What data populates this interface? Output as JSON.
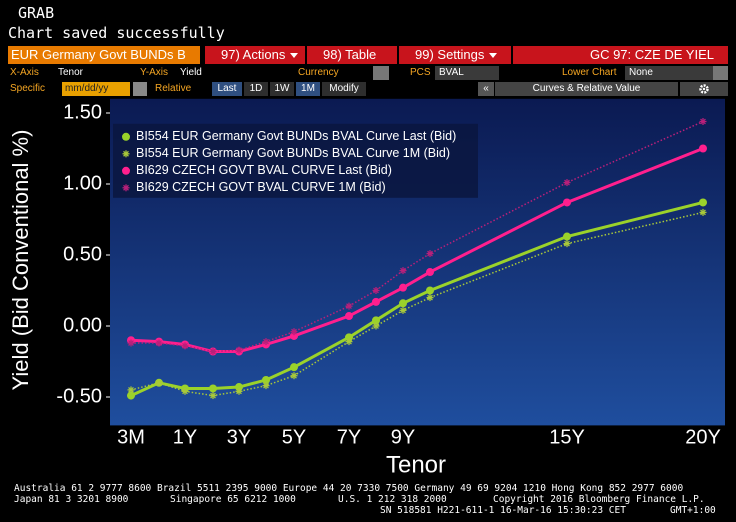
{
  "header": {
    "title": "GRAB",
    "message": "Chart saved successfully"
  },
  "toolbar": {
    "security": "EUR Germany Govt BUNDs B",
    "actions": "97) Actions",
    "table": "98) Table",
    "settings": "99) Settings",
    "function": "GC 97: CZE DE YIEL",
    "x_axis_label": "X-Axis",
    "x_axis_value": "Tenor",
    "y_axis_label": "Y-Axis",
    "y_axis_value": "Yield",
    "currency_label": "Currency",
    "pcs_label": "PCS",
    "pcs_value": "BVAL",
    "lower_chart_label": "Lower Chart",
    "lower_chart_value": "None",
    "specific_label": "Specific",
    "date_placeholder": "mm/dd/yy",
    "relative_label": "Relative",
    "relative_buttons": [
      "Last",
      "1D",
      "1W",
      "1M"
    ],
    "modify": "Modify",
    "collapse": "«",
    "panel": "Curves & Relative Value"
  },
  "chart_data": {
    "type": "line",
    "x_label": "Tenor",
    "y_label": "Yield (Bid Conventional %)",
    "categories": [
      "3M",
      null,
      "1Y",
      null,
      "3Y",
      null,
      "5Y",
      "7Y",
      null,
      "9Y",
      null,
      "15Y",
      "20Y"
    ],
    "ylim": [
      -0.7,
      1.6
    ],
    "yticks": [
      {
        "value": -0.5,
        "label": "-0.50"
      },
      {
        "value": 0,
        "label": "0.00"
      },
      {
        "value": 0.5,
        "label": "0.50"
      },
      {
        "value": 1,
        "label": "1.00"
      },
      {
        "value": 1.5,
        "label": "1.50"
      }
    ],
    "legend": "upper left",
    "series": [
      {
        "name": "BI554 EUR Germany Govt BUNDs BVAL Curve Last (Bid)",
        "color": "#9bd22a",
        "marker": "circle",
        "linestyle": "solid",
        "values": [
          -0.49,
          -0.4,
          -0.44,
          -0.44,
          -0.43,
          -0.38,
          -0.29,
          -0.08,
          0.04,
          0.16,
          0.25,
          0.63,
          0.87
        ]
      },
      {
        "name": "BI554 EUR Germany Govt BUNDs BVAL Curve 1M (Bid)",
        "color": "#a8c83a",
        "marker": "asterisk",
        "linestyle": "dotted",
        "values": [
          -0.45,
          -0.4,
          -0.46,
          -0.49,
          -0.46,
          -0.42,
          -0.35,
          -0.11,
          0.0,
          0.11,
          0.2,
          0.58,
          0.8
        ]
      },
      {
        "name": "BI629 CZECH GOVT BVAL CURVE Last (Bid)",
        "color": "#ff1f8e",
        "marker": "circle",
        "linestyle": "solid",
        "values": [
          -0.1,
          -0.11,
          -0.13,
          -0.18,
          -0.18,
          -0.13,
          -0.07,
          0.07,
          0.17,
          0.27,
          0.38,
          0.87,
          1.25
        ]
      },
      {
        "name": "BI629 CZECH GOVT BVAL CURVE 1M (Bid)",
        "color": "#b8207a",
        "marker": "asterisk",
        "linestyle": "dotted",
        "values": [
          -0.12,
          -0.12,
          -0.14,
          -0.18,
          -0.17,
          -0.11,
          -0.04,
          0.14,
          0.25,
          0.39,
          0.51,
          1.01,
          1.44
        ]
      }
    ]
  },
  "footer": {
    "line1": "Australia 61 2 9777 8600 Brazil 5511 2395 9000 Europe 44 20 7330 7500 Germany 49 69 9204 1210 Hong Kong 852 2977 6000",
    "line2": [
      "Japan 81 3 3201 8900",
      "Singapore 65 6212 1000",
      "U.S. 1 212 318 2000",
      "Copyright 2016 Bloomberg Finance L.P."
    ],
    "line3": [
      "SN 518581 H221-611-1 16-Mar-16 15:30:23 CET",
      "GMT+1:00"
    ]
  }
}
